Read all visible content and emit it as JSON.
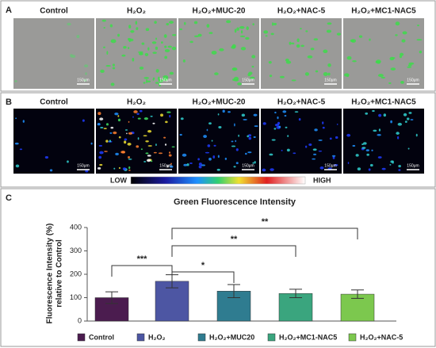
{
  "panel_a": {
    "letter": "A",
    "labels": [
      "Control",
      "H₂O₂",
      "H₂O₂+MUC-20",
      "H₂O₂+NAC-5",
      "H₂O₂+MC1-NAC5"
    ],
    "scale_bar": "150μm"
  },
  "panel_b": {
    "letter": "B",
    "labels": [
      "Control",
      "H₂O₂",
      "H₂O₂+MUC-20",
      "H₂O₂+NAC-5",
      "H₂O₂+MC1-NAC5"
    ],
    "scale_bar": "150μm",
    "colorbar_low": "LOW",
    "colorbar_high": "HIGH"
  },
  "chart_data": {
    "type": "bar",
    "letter": "C",
    "title": "Green Fluorescence Intensity",
    "ylabel": [
      "Fluorescence Intensity (%)",
      "relative to Control"
    ],
    "ylim": [
      0,
      400
    ],
    "yticks": [
      0,
      100,
      200,
      300,
      400
    ],
    "series": [
      {
        "name": "Control",
        "color": "#4b1c4f",
        "value": 100,
        "error": 25
      },
      {
        "name": "H₂O₂",
        "color": "#4d56a3",
        "value": 170,
        "error": 28
      },
      {
        "name": "H₂O₂+MUC20",
        "color": "#2f7c90",
        "value": 128,
        "error": 28
      },
      {
        "name": "H₂O₂+MC1-NAC5",
        "color": "#3aa57e",
        "value": 118,
        "error": 18
      },
      {
        "name": "H₂O₂+NAC-5",
        "color": "#7cc84e",
        "value": 115,
        "error": 18
      }
    ],
    "annotations": [
      "***",
      "*",
      "**",
      "**"
    ]
  }
}
